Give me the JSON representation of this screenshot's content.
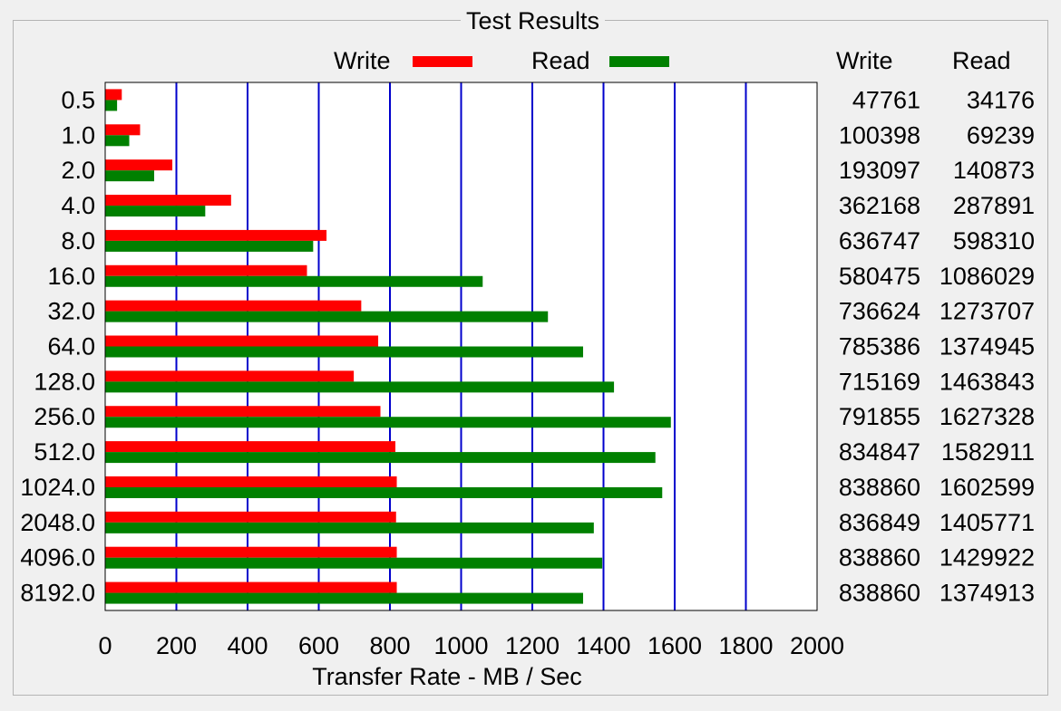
{
  "groupbox_title": "Test Results",
  "legend": {
    "write_label": "Write",
    "read_label": "Read"
  },
  "table": {
    "write_header": "Write",
    "read_header": "Read"
  },
  "colors": {
    "write": "#ff0000",
    "read": "#008000",
    "grid": "#0000cc"
  },
  "chart_data": {
    "type": "bar",
    "orientation": "horizontal",
    "title": "Test Results",
    "xlabel": "Transfer Rate - MB / Sec",
    "ylabel": "",
    "xlim": [
      0,
      2000
    ],
    "x_ticks": [
      0,
      200,
      400,
      600,
      800,
      1000,
      1200,
      1400,
      1600,
      1800,
      2000
    ],
    "grid": "vertical",
    "legend_position": "top",
    "categories": [
      "0.5",
      "1.0",
      "2.0",
      "4.0",
      "8.0",
      "16.0",
      "32.0",
      "64.0",
      "128.0",
      "256.0",
      "512.0",
      "1024.0",
      "2048.0",
      "4096.0",
      "8192.0"
    ],
    "series": [
      {
        "name": "Write",
        "values": [
          46.6,
          98.0,
          188.6,
          353.7,
          621.8,
          566.9,
          719.4,
          767.0,
          698.4,
          773.3,
          815.3,
          819.2,
          817.2,
          819.2,
          819.2
        ],
        "table_values": [
          "47761",
          "100398",
          "193097",
          "362168",
          "636747",
          "580475",
          "736624",
          "785386",
          "715169",
          "791855",
          "834847",
          "838860",
          "836849",
          "838860",
          "838860"
        ]
      },
      {
        "name": "Read",
        "values": [
          33.4,
          67.6,
          137.6,
          281.1,
          584.3,
          1060.6,
          1243.9,
          1342.7,
          1429.5,
          1589.2,
          1545.8,
          1565.0,
          1372.8,
          1396.4,
          1342.7
        ],
        "table_values": [
          "34176",
          "69239",
          "140873",
          "287891",
          "598310",
          "1086029",
          "1273707",
          "1374945",
          "1463843",
          "1627328",
          "1582911",
          "1602599",
          "1405771",
          "1429922",
          "1374913"
        ]
      }
    ]
  }
}
